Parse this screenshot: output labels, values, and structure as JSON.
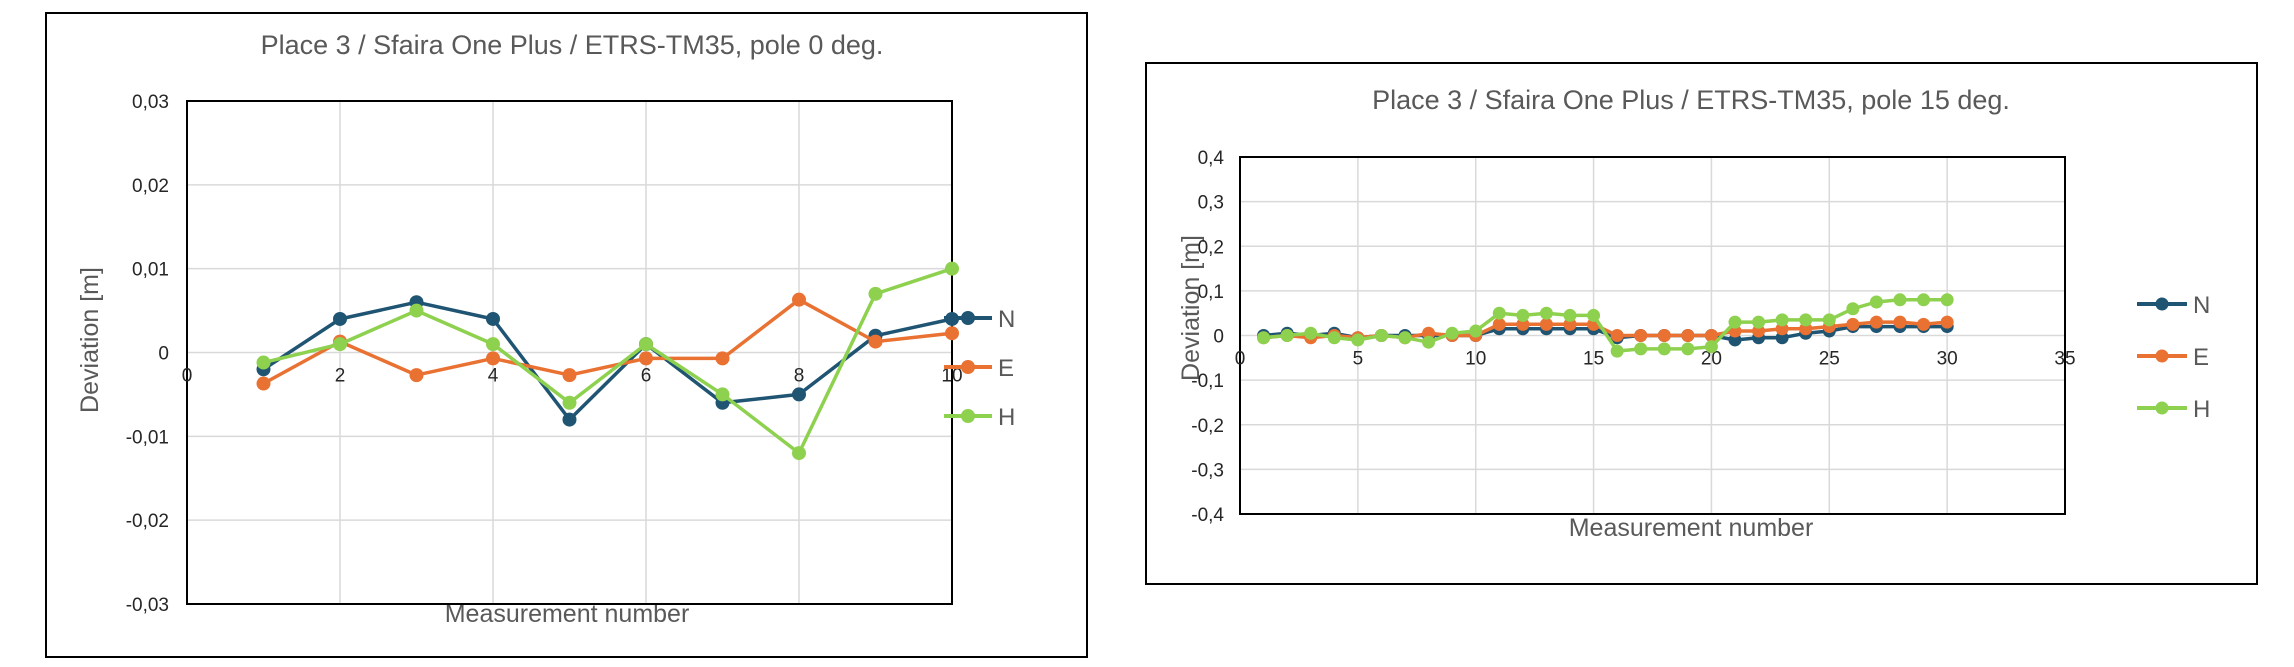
{
  "chart_data": [
    {
      "type": "line",
      "title": "Place 3 / Sfaira One Plus / ETRS-TM35, pole 0 deg.",
      "xlabel": "Measurement number",
      "ylabel": "Deviation [m]",
      "xlim": [
        0,
        10
      ],
      "ylim": [
        -0.03,
        0.03
      ],
      "x_ticks": [
        0,
        2,
        4,
        6,
        8,
        10
      ],
      "y_ticks": [
        0.03,
        0.02,
        0.01,
        0,
        -0.01,
        -0.02,
        -0.03
      ],
      "x_tick_labels": [
        "0",
        "2",
        "4",
        "6",
        "8",
        "10"
      ],
      "y_tick_labels": [
        "0,03",
        "0,02",
        "0,01",
        "0",
        "-0,01",
        "-0,02",
        "-0,03"
      ],
      "grid": true,
      "legend": "right",
      "x": [
        1,
        2,
        3,
        4,
        5,
        6,
        7,
        8,
        9,
        10
      ],
      "series": [
        {
          "name": "N",
          "color": "#1f5473",
          "values": [
            -0.002,
            0.004,
            0.006,
            0.004,
            -0.008,
            0.001,
            -0.006,
            -0.005,
            0.002,
            0.004
          ]
        },
        {
          "name": "E",
          "color": "#e97132",
          "values": [
            -0.0037,
            0.0013,
            -0.0027,
            -0.0007,
            -0.0027,
            -0.0007,
            -0.0007,
            0.0063,
            0.0013,
            0.0023
          ]
        },
        {
          "name": "H",
          "color": "#8ed14f",
          "values": [
            -0.0012,
            0.001,
            0.005,
            0.001,
            -0.006,
            0.001,
            -0.005,
            -0.012,
            0.007,
            0.01
          ]
        }
      ]
    },
    {
      "type": "line",
      "title": "Place 3 / Sfaira One Plus / ETRS-TM35, pole 15 deg.",
      "xlabel": "Measurement number",
      "ylabel": "Deviation [m]",
      "xlim": [
        0,
        35
      ],
      "ylim": [
        -0.4,
        0.4
      ],
      "x_ticks": [
        0,
        5,
        10,
        15,
        20,
        25,
        30,
        35
      ],
      "y_ticks": [
        0.4,
        0.3,
        0.2,
        0.1,
        0,
        -0.1,
        -0.2,
        -0.3,
        -0.4
      ],
      "x_tick_labels": [
        "0",
        "5",
        "10",
        "15",
        "20",
        "25",
        "30",
        "35"
      ],
      "y_tick_labels": [
        "0,4",
        "0,3",
        "0,2",
        "0,1",
        "0",
        "-0,1",
        "-0,2",
        "-0,3",
        "-0,4"
      ],
      "grid": true,
      "legend": "right",
      "x": [
        1,
        2,
        3,
        4,
        5,
        6,
        7,
        8,
        9,
        10,
        11,
        12,
        13,
        14,
        15,
        16,
        17,
        18,
        19,
        20,
        21,
        22,
        23,
        24,
        25,
        26,
        27,
        28,
        29,
        30
      ],
      "series": [
        {
          "name": "N",
          "color": "#1f5473",
          "values": [
            0,
            0.005,
            0,
            0.005,
            -0.005,
            0,
            0,
            0,
            0,
            0,
            0.015,
            0.015,
            0.015,
            0.015,
            0.015,
            -0.005,
            0,
            0,
            0,
            0,
            -0.01,
            -0.005,
            -0.005,
            0.005,
            0.01,
            0.02,
            0.02,
            0.02,
            0.02,
            0.02
          ]
        },
        {
          "name": "E",
          "color": "#e97132",
          "values": [
            -0.005,
            0,
            -0.005,
            0,
            -0.005,
            0,
            -0.005,
            0.005,
            0,
            0,
            0.025,
            0.025,
            0.025,
            0.025,
            0.025,
            0,
            0,
            0,
            0,
            0,
            0.01,
            0.01,
            0.015,
            0.015,
            0.02,
            0.025,
            0.03,
            0.03,
            0.025,
            0.03
          ]
        },
        {
          "name": "H",
          "color": "#8ed14f",
          "values": [
            -0.005,
            0,
            0.005,
            -0.005,
            -0.01,
            0,
            -0.005,
            -0.015,
            0.005,
            0.01,
            0.05,
            0.045,
            0.05,
            0.045,
            0.045,
            -0.035,
            -0.03,
            -0.03,
            -0.03,
            -0.025,
            0.03,
            0.03,
            0.035,
            0.035,
            0.035,
            0.06,
            0.075,
            0.08,
            0.08,
            0.08
          ]
        }
      ]
    }
  ]
}
